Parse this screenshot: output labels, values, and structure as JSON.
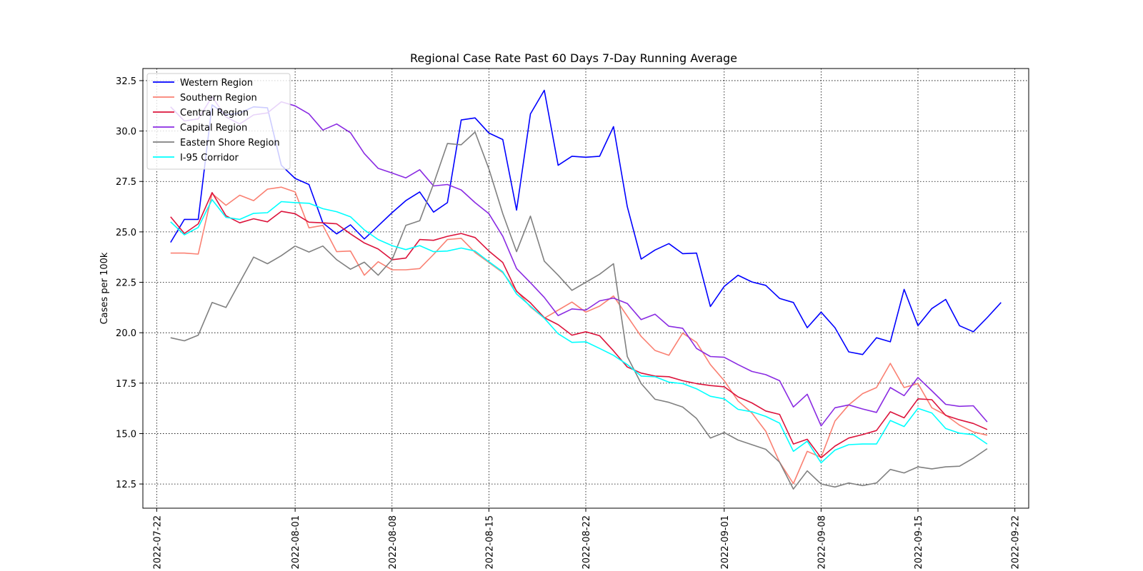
{
  "chart_data": {
    "type": "line",
    "title": "Regional Case Rate  Past 60 Days 7-Day Running Average",
    "xlabel": "",
    "ylabel": "Cases per 100k",
    "x_start": "2022-07-23",
    "x_axis_range": [
      "2022-07-21",
      "2022-09-23"
    ],
    "ylim": [
      11.3,
      33.1
    ],
    "x_ticks": [
      "2022-07-22",
      "2022-08-01",
      "2022-08-08",
      "2022-08-15",
      "2022-08-22",
      "2022-09-01",
      "2022-09-08",
      "2022-09-15",
      "2022-09-22"
    ],
    "y_ticks": [
      "12.5",
      "15.0",
      "17.5",
      "20.0",
      "22.5",
      "25.0",
      "27.5",
      "30.0",
      "32.5"
    ],
    "grid": true,
    "grid_style": "dotted",
    "legend_position": "top-left",
    "series": [
      {
        "name": "Western Region",
        "color": "#0000ff",
        "values": [
          24.48,
          25.62,
          25.62,
          31.3,
          30.8,
          30.9,
          31.2,
          31.15,
          28.3,
          27.65,
          27.35,
          25.45,
          24.9,
          25.35,
          24.65,
          25.3,
          25.95,
          26.55,
          26.98,
          25.98,
          26.45,
          30.55,
          30.65,
          29.9,
          29.58,
          26.08,
          30.85,
          32.02,
          28.3,
          28.75,
          28.7,
          28.75,
          30.22,
          26.25,
          23.65,
          24.1,
          24.42,
          23.92,
          23.95,
          21.3,
          22.3,
          22.85,
          22.52,
          22.35,
          21.7,
          21.5,
          20.25,
          21.02,
          20.25,
          19.05,
          18.92,
          19.75,
          19.55,
          22.15,
          20.35,
          21.2,
          21.65,
          20.35,
          20.05,
          20.75,
          21.5
        ]
      },
      {
        "name": "Southern Region",
        "color": "#fa8072",
        "values": [
          23.95,
          23.95,
          23.9,
          26.9,
          26.32,
          26.82,
          26.55,
          27.12,
          27.22,
          26.98,
          25.2,
          25.32,
          24.02,
          24.05,
          22.85,
          23.52,
          23.12,
          23.12,
          23.18,
          23.88,
          24.62,
          24.68,
          23.98,
          23.48,
          22.98,
          22.08,
          21.28,
          20.72,
          21.12,
          21.52,
          21.02,
          21.32,
          21.82,
          20.82,
          19.82,
          19.12,
          18.88,
          19.98,
          19.52,
          18.42,
          17.62,
          16.62,
          16.02,
          15.12,
          13.58,
          12.52,
          14.12,
          13.82,
          15.62,
          16.42,
          16.98,
          17.28,
          18.48,
          17.28,
          17.48,
          16.28,
          15.92,
          15.42,
          15.08,
          14.92
        ]
      },
      {
        "name": "Central Region",
        "color": "#dc143c",
        "values": [
          25.75,
          24.92,
          25.4,
          26.95,
          25.8,
          25.45,
          25.65,
          25.5,
          26.02,
          25.9,
          25.48,
          25.45,
          25.4,
          24.9,
          24.45,
          24.15,
          23.62,
          23.7,
          24.62,
          24.58,
          24.78,
          24.92,
          24.72,
          24.05,
          23.48,
          22.05,
          21.48,
          20.75,
          20.4,
          19.88,
          20.05,
          19.85,
          19.1,
          18.3,
          18.0,
          17.85,
          17.82,
          17.62,
          17.48,
          17.38,
          17.32,
          16.82,
          16.52,
          16.12,
          15.95,
          14.48,
          14.72,
          13.8,
          14.38,
          14.78,
          14.95,
          15.15,
          16.08,
          15.78,
          16.72,
          16.68,
          15.9,
          15.68,
          15.5,
          15.2
        ]
      },
      {
        "name": "Capital Region",
        "color": "#8a2be2",
        "values": [
          31.2,
          30.5,
          30.6,
          31.7,
          30.7,
          30.35,
          30.8,
          30.9,
          31.45,
          31.25,
          30.85,
          30.05,
          30.35,
          29.92,
          28.88,
          28.15,
          27.92,
          27.68,
          28.08,
          27.28,
          27.35,
          27.08,
          26.45,
          25.9,
          24.78,
          23.18,
          22.48,
          21.75,
          20.85,
          21.18,
          21.12,
          21.58,
          21.72,
          21.45,
          20.65,
          20.92,
          20.32,
          20.22,
          19.22,
          18.82,
          18.78,
          18.42,
          18.08,
          17.92,
          17.62,
          16.32,
          16.95,
          15.38,
          16.28,
          16.42,
          16.22,
          16.05,
          17.28,
          16.88,
          17.78,
          17.12,
          16.45,
          16.35,
          16.38,
          15.58
        ]
      },
      {
        "name": "Eastern Shore Region",
        "color": "#808080",
        "values": [
          19.75,
          19.6,
          19.88,
          21.5,
          21.25,
          22.5,
          23.75,
          23.42,
          23.82,
          24.3,
          24.0,
          24.3,
          23.62,
          23.15,
          23.5,
          22.85,
          23.62,
          25.32,
          25.55,
          27.38,
          29.38,
          29.32,
          29.95,
          28.12,
          25.9,
          24.02,
          25.78,
          23.55,
          22.85,
          22.1,
          22.5,
          22.9,
          23.42,
          18.82,
          17.48,
          16.7,
          16.55,
          16.32,
          15.75,
          14.78,
          15.05,
          14.68,
          14.45,
          14.22,
          13.58,
          12.25,
          13.15,
          12.5,
          12.35,
          12.55,
          12.42,
          12.55,
          13.22,
          13.05,
          13.35,
          13.25,
          13.35,
          13.38,
          13.78,
          14.25
        ]
      },
      {
        "name": "I-95 Corridor",
        "color": "#00ffff",
        "values": [
          25.5,
          24.85,
          25.22,
          26.6,
          25.72,
          25.62,
          25.92,
          25.95,
          26.5,
          26.45,
          26.42,
          26.15,
          26.0,
          25.75,
          25.1,
          24.62,
          24.32,
          24.12,
          24.32,
          24.02,
          24.05,
          24.2,
          24.05,
          23.52,
          23.02,
          21.92,
          21.32,
          20.72,
          19.95,
          19.52,
          19.55,
          19.22,
          18.88,
          18.42,
          17.85,
          17.82,
          17.55,
          17.48,
          17.22,
          16.85,
          16.72,
          16.2,
          16.08,
          15.85,
          15.52,
          14.12,
          14.62,
          13.55,
          14.18,
          14.45,
          14.48,
          14.48,
          15.65,
          15.35,
          16.25,
          16.02,
          15.25,
          15.02,
          14.95,
          14.48
        ]
      }
    ]
  }
}
